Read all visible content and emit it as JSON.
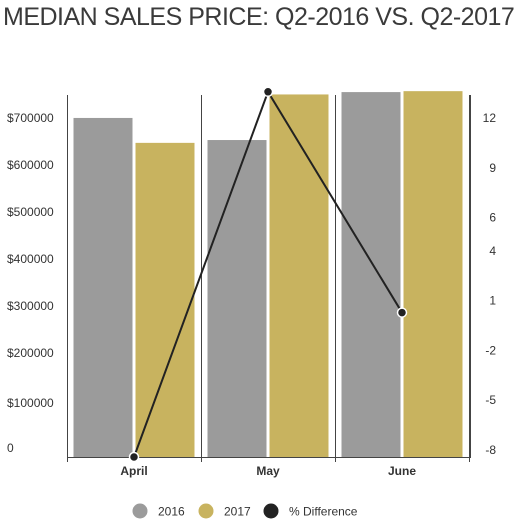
{
  "chart_data": {
    "type": "bar",
    "title": "MEDIAN SALES PRICE: Q2-2016 VS. Q2-2017",
    "categories": [
      "April",
      "May",
      "June"
    ],
    "series": [
      {
        "name": "2016",
        "kind": "bar",
        "axis": "left",
        "color": "#9b9b9b",
        "values": [
          715000,
          668000,
          770000
        ]
      },
      {
        "name": "2017",
        "kind": "bar",
        "axis": "left",
        "color": "#c8b35f",
        "values": [
          662000,
          765000,
          772000
        ]
      },
      {
        "name": "% Difference",
        "kind": "line",
        "axis": "right",
        "color": "#222222",
        "values": [
          -8,
          14,
          0.7
        ]
      }
    ],
    "left_axis": {
      "ticks": [
        {
          "label": "0",
          "value": 0
        },
        {
          "label": "$100000",
          "value": 100000
        },
        {
          "label": "$200000",
          "value": 200000
        },
        {
          "label": "$300000",
          "value": 300000
        },
        {
          "label": "$400000",
          "value": 400000
        },
        {
          "label": "$500000",
          "value": 500000
        },
        {
          "label": "$600000",
          "value": 600000
        },
        {
          "label": "$700000",
          "value": 700000
        }
      ]
    },
    "right_axis": {
      "ticks": [
        {
          "label": "-8",
          "value": -8
        },
        {
          "label": "-5",
          "value": -5
        },
        {
          "label": "-2",
          "value": -2
        },
        {
          "label": "1",
          "value": 1
        },
        {
          "label": "4",
          "value": 4
        },
        {
          "label": "6",
          "value": 6
        },
        {
          "label": "9",
          "value": 9
        },
        {
          "label": "12",
          "value": 12
        }
      ]
    },
    "legend_position": "bottom",
    "grid": false
  }
}
